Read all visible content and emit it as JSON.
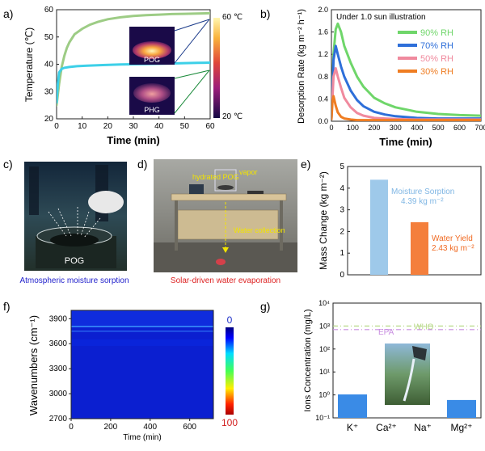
{
  "chart_data": [
    {
      "panel": "a)",
      "type": "line",
      "xlabel": "Time (min)",
      "ylabel": "Temperature (℃)",
      "xlim": [
        0,
        60
      ],
      "ylim": [
        20,
        60
      ],
      "xticks": [
        "0",
        "10",
        "20",
        "30",
        "40",
        "50",
        "60"
      ],
      "yticks": [
        "20",
        "30",
        "40",
        "50",
        "60"
      ],
      "series": [
        {
          "name": "POG",
          "color": "#9dcc85",
          "x": [
            0,
            1,
            2,
            3,
            4,
            5,
            7,
            10,
            13,
            16,
            20,
            25,
            30,
            35,
            40,
            45,
            50,
            55,
            60
          ],
          "y": [
            25,
            33,
            39,
            43,
            46,
            48,
            51,
            53,
            54.5,
            55.5,
            56.5,
            57.2,
            57.7,
            58,
            58.2,
            58.4,
            58.5,
            58.6,
            58.7
          ]
        },
        {
          "name": "PHG",
          "color": "#3dd0e8",
          "x": [
            0,
            0.5,
            1,
            2,
            3,
            5,
            8,
            12,
            18,
            25,
            35,
            45,
            55,
            60
          ],
          "y": [
            26,
            33,
            37,
            38.3,
            38.7,
            39,
            39.3,
            39.5,
            39.7,
            39.9,
            40.1,
            40.3,
            40.5,
            40.6
          ]
        }
      ],
      "insets": [
        {
          "label": "POG"
        },
        {
          "label": "PHG"
        }
      ],
      "colorbar": {
        "max_label": "60 ℃",
        "min_label": "20 ℃"
      }
    },
    {
      "panel": "b)",
      "type": "line",
      "title": "Under 1.0 sun illustration",
      "xlabel": "Time (min)",
      "ylabel": "Desorption Rate (kg m⁻² h⁻¹)",
      "xlim": [
        0,
        700
      ],
      "ylim": [
        0,
        2.0
      ],
      "xticks": [
        "0",
        "100",
        "200",
        "300",
        "400",
        "500",
        "600",
        "700"
      ],
      "yticks": [
        "0.0",
        "0.4",
        "0.8",
        "1.2",
        "1.6",
        "2.0"
      ],
      "legend": "top-right",
      "series": [
        {
          "name": "90% RH",
          "color": "#6fd66a",
          "x": [
            0,
            10,
            20,
            30,
            45,
            60,
            90,
            120,
            150,
            200,
            250,
            300,
            400,
            500,
            600,
            700
          ],
          "y": [
            0.05,
            1.2,
            1.65,
            1.75,
            1.6,
            1.35,
            1.05,
            0.8,
            0.62,
            0.42,
            0.32,
            0.25,
            0.17,
            0.13,
            0.11,
            0.1
          ]
        },
        {
          "name": "70% RH",
          "color": "#2e6fd9",
          "x": [
            0,
            10,
            20,
            30,
            45,
            60,
            90,
            120,
            150,
            200,
            250,
            300,
            400,
            500,
            600,
            700
          ],
          "y": [
            0.05,
            1.1,
            1.35,
            1.2,
            0.98,
            0.8,
            0.55,
            0.38,
            0.27,
            0.17,
            0.12,
            0.09,
            0.06,
            0.05,
            0.05,
            0.05
          ]
        },
        {
          "name": "50% RH",
          "color": "#f08a9e",
          "x": [
            0,
            10,
            20,
            30,
            45,
            60,
            90,
            120,
            150,
            200,
            250,
            300,
            400,
            500,
            600,
            700
          ],
          "y": [
            0.05,
            0.8,
            0.95,
            0.8,
            0.6,
            0.42,
            0.25,
            0.15,
            0.1,
            0.06,
            0.05,
            0.04,
            0.03,
            0.03,
            0.03,
            0.03
          ]
        },
        {
          "name": "30% RH",
          "color": "#ef7d22",
          "x": [
            0,
            5,
            10,
            20,
            30,
            45,
            60,
            90,
            120,
            200,
            300,
            400,
            500,
            600,
            700
          ],
          "y": [
            0.02,
            0.35,
            0.45,
            0.28,
            0.16,
            0.08,
            0.05,
            0.03,
            0.02,
            0.02,
            0.02,
            0.02,
            0.02,
            0.02,
            0.02
          ]
        }
      ]
    },
    {
      "panel": "e)",
      "type": "bar",
      "ylabel": "Mass Change (kg m⁻²)",
      "ylim": [
        0,
        5
      ],
      "yticks": [
        "0",
        "1",
        "2",
        "3",
        "4",
        "5"
      ],
      "categories": [
        "Moisture Sorption",
        "Water Yield"
      ],
      "values": [
        4.39,
        2.43
      ],
      "colors": [
        "#9ec9ea",
        "#f47f3c"
      ],
      "annotations": [
        {
          "title": "Moisture Sorption",
          "value": "4.39 kg m⁻²"
        },
        {
          "title": "Water Yield",
          "value": "2.43 kg m⁻²"
        }
      ]
    },
    {
      "panel": "f)",
      "type": "heatmap",
      "xlabel": "Time (min)",
      "ylabel": "Wavenumbers (cm⁻¹)",
      "xlim": [
        0,
        720
      ],
      "ylim": [
        2700,
        4000
      ],
      "xticks": [
        "0",
        "200",
        "400",
        "600"
      ],
      "yticks": [
        "2700",
        "3000",
        "3300",
        "3600",
        "3900"
      ],
      "colorbar": {
        "top_label": "0",
        "bottom_label": "100"
      }
    },
    {
      "panel": "g)",
      "type": "bar",
      "ylabel": "Ions Concentration (mg/L)",
      "yscale": "log",
      "ylim_exp": [
        -1,
        4
      ],
      "yticks": [
        "10⁻¹",
        "10⁰",
        "10¹",
        "10²",
        "10³",
        "10⁴"
      ],
      "categories": [
        "K⁺",
        "Ca²⁺",
        "Na⁺",
        "Mg²⁺"
      ],
      "values": [
        1.05,
        0.1,
        0.1,
        0.6
      ],
      "bar_color": "#3a8be6",
      "reference_lines": [
        {
          "name": "WHO",
          "value": 1000,
          "color": "#b9d98a"
        },
        {
          "name": "EPA",
          "value": 700,
          "color": "#c88ee0"
        }
      ]
    }
  ],
  "photos": {
    "c": {
      "label": "POG",
      "caption": "Atmospheric moisture sorption"
    },
    "d": {
      "label_vapor": "vapor",
      "label_hydrated": "hydrated POG",
      "label_water": "Water collection",
      "caption": "Solar-driven water evaporation"
    }
  },
  "panel_labels": {
    "a": "a)",
    "b": "b)",
    "c": "c)",
    "d": "d)",
    "e": "e)",
    "f": "f)",
    "g": "g)"
  }
}
